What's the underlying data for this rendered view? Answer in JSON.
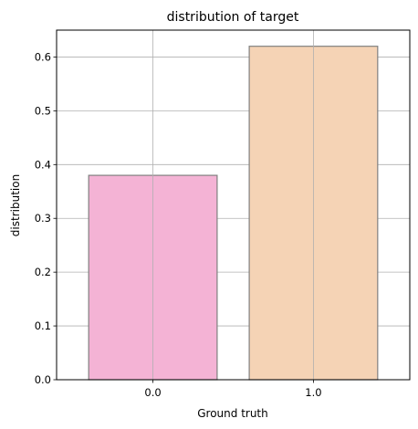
{
  "chart_data": {
    "type": "bar",
    "title": "distribution of target",
    "xlabel": "Ground truth",
    "ylabel": "distribution",
    "categories": [
      "0.0",
      "1.0"
    ],
    "values": [
      0.38,
      0.62
    ],
    "colors": [
      "#f4b3d5",
      "#f5d3b5"
    ],
    "edge_color": "#808080",
    "ylim": [
      0,
      0.65
    ],
    "yticks": [
      0.0,
      0.1,
      0.2,
      0.3,
      0.4,
      0.5,
      0.6
    ],
    "ytick_labels": [
      "0.0",
      "0.1",
      "0.2",
      "0.3",
      "0.4",
      "0.5",
      "0.6"
    ],
    "grid": true,
    "grid_color": "#b0b0b0"
  }
}
